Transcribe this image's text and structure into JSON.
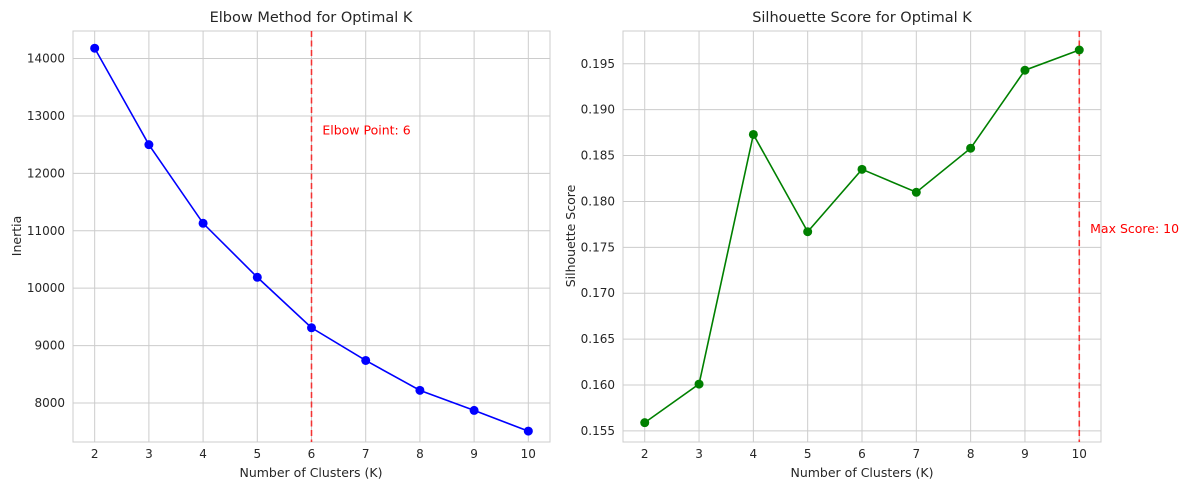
{
  "chart_data": [
    {
      "type": "line",
      "title": "Elbow Method for Optimal K",
      "xlabel": "Number of Clusters (K)",
      "ylabel": "Inertia",
      "x": [
        2,
        3,
        4,
        5,
        6,
        7,
        8,
        9,
        10
      ],
      "series": [
        {
          "values": [
            14180,
            12500,
            11130,
            10190,
            9310,
            8740,
            8220,
            7870,
            7510
          ],
          "color": "#0000ff",
          "marker": "circle"
        }
      ],
      "xlim": [
        1.6,
        10.4
      ],
      "ylim": [
        7320,
        14480
      ],
      "xticks": [
        2,
        3,
        4,
        5,
        6,
        7,
        8,
        9,
        10
      ],
      "yticks": [
        8000,
        9000,
        10000,
        11000,
        12000,
        13000,
        14000
      ],
      "grid": true,
      "vline": {
        "x": 6,
        "color": "#ff0000",
        "style": "dashed"
      },
      "annotation": {
        "text": "Elbow Point: 6",
        "x": 6.2,
        "y": 12750,
        "color": "#ff0000"
      }
    },
    {
      "type": "line",
      "title": "Silhouette Score for Optimal K",
      "xlabel": "Number of Clusters (K)",
      "ylabel": "Silhouette Score",
      "x": [
        2,
        3,
        4,
        5,
        6,
        7,
        8,
        9,
        10
      ],
      "series": [
        {
          "values": [
            0.1559,
            0.1601,
            0.1873,
            0.1767,
            0.1835,
            0.181,
            0.1858,
            0.1943,
            0.1965
          ],
          "color": "#008000",
          "marker": "circle"
        }
      ],
      "xlim": [
        1.6,
        10.4
      ],
      "ylim": [
        0.15379,
        0.19857
      ],
      "xticks": [
        2,
        3,
        4,
        5,
        6,
        7,
        8,
        9,
        10
      ],
      "yticks": [
        0.155,
        0.16,
        0.165,
        0.17,
        0.175,
        0.18,
        0.185,
        0.19,
        0.195
      ],
      "ytick_labels": [
        "0.155",
        "0.160",
        "0.165",
        "0.170",
        "0.175",
        "0.180",
        "0.185",
        "0.190",
        "0.195"
      ],
      "grid": true,
      "vline": {
        "x": 10,
        "color": "#ff0000",
        "style": "dashed"
      },
      "annotation": {
        "text": "Max Score: 10",
        "x": 10.2,
        "y": 0.177,
        "color": "#ff0000"
      }
    }
  ]
}
